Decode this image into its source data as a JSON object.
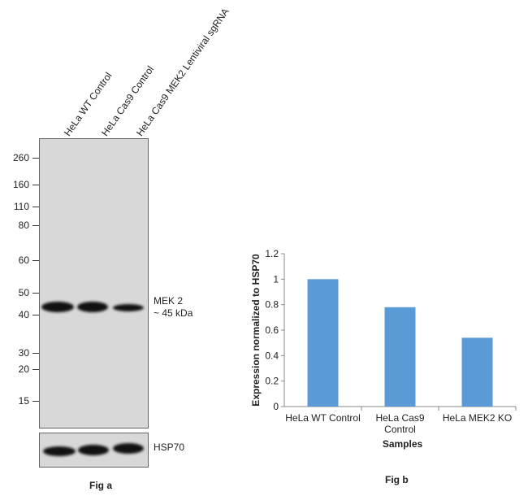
{
  "fig_a": {
    "caption": "Fig a",
    "lanes": [
      "HeLa WT Control",
      "HeLa Cas9 Control",
      "HeLa Cas9 MEK2 Lentiviral sgRNA"
    ],
    "markers": [
      "260",
      "160",
      "110",
      "80",
      "60",
      "50",
      "40",
      "30",
      "20",
      "15"
    ],
    "band_label_1": "MEK 2",
    "band_label_2": "~ 45 kDa",
    "loading_label": "HSP70"
  },
  "fig_b": {
    "caption": "Fig b"
  },
  "chart_data": {
    "type": "bar",
    "categories": [
      "HeLa WT Control",
      "HeLa Cas9 Control",
      "HeLa MEK2 KO"
    ],
    "values": [
      1.0,
      0.78,
      0.54
    ],
    "xlabel": "Samples",
    "ylabel": "Expression normalized to HSP70",
    "ylim": [
      0,
      1.2
    ],
    "yticks": [
      "0",
      "0.2",
      "0.4",
      "0.6",
      "0.8",
      "1",
      "1.2"
    ],
    "bar_color": "#5b9bd5",
    "grid": false
  }
}
